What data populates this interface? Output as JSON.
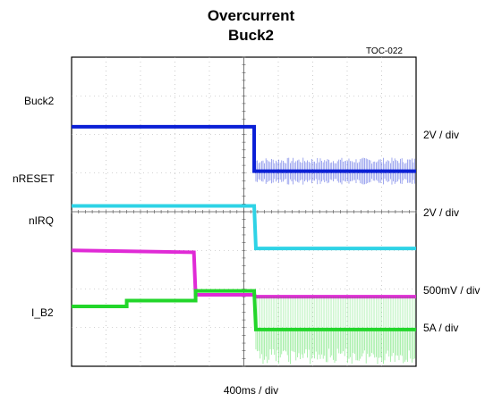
{
  "header": {
    "title_line1": "Overcurrent",
    "title_line2": "Buck2",
    "figure_id": "TOC-022"
  },
  "chart_data": {
    "type": "line",
    "title": "Overcurrent Buck2",
    "xlabel": "400ms / div",
    "x_divisions": 10,
    "y_divisions": 8,
    "grid": true,
    "channels": [
      {
        "name": "Buck2",
        "scale": "2V / div",
        "color": "#0a1fd6",
        "trace": [
          [
            0,
            6.2
          ],
          [
            5.3,
            6.2
          ],
          [
            5.3,
            5.05
          ],
          [
            10,
            5.05
          ]
        ],
        "ripple_after": 5.35,
        "ripple_amp": 0.35
      },
      {
        "name": "nRESET",
        "scale": "2V / div",
        "color": "#2fd3e6",
        "trace": [
          [
            0,
            4.15
          ],
          [
            5.3,
            4.15
          ],
          [
            5.35,
            3.05
          ],
          [
            10,
            3.05
          ]
        ],
        "ripple_after": null,
        "ripple_amp": 0
      },
      {
        "name": "nIRQ",
        "scale": "500mV / div",
        "color": "#e02ad6",
        "trace": [
          [
            0,
            3.0
          ],
          [
            3.55,
            2.95
          ],
          [
            3.6,
            1.85
          ],
          [
            5.3,
            1.85
          ],
          [
            5.35,
            1.8
          ],
          [
            10,
            1.8
          ]
        ],
        "ripple_after": null,
        "ripple_amp": 0
      },
      {
        "name": "I_B2",
        "scale": "5A / div",
        "color": "#22d62a",
        "trace": [
          [
            0,
            1.55
          ],
          [
            1.6,
            1.55
          ],
          [
            1.6,
            1.7
          ],
          [
            3.6,
            1.7
          ],
          [
            3.6,
            1.95
          ],
          [
            5.3,
            1.95
          ],
          [
            5.35,
            0.95
          ],
          [
            10,
            0.95
          ]
        ],
        "ripple_after": 5.35,
        "ripple_amp": 0.9
      }
    ]
  }
}
